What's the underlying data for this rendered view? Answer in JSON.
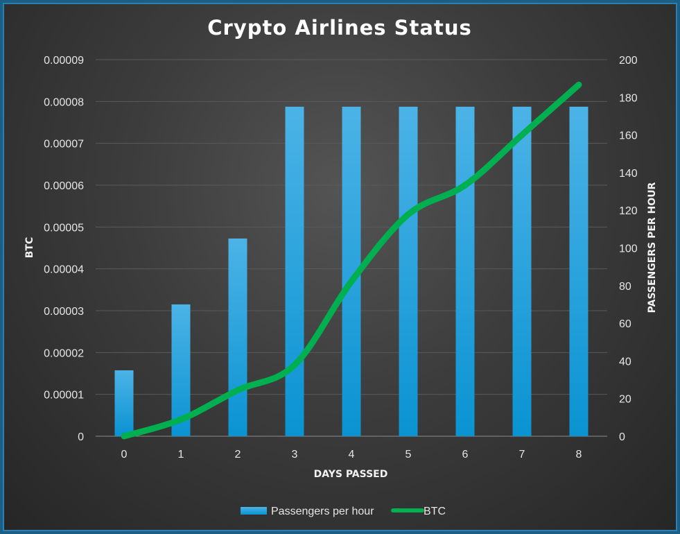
{
  "chart_data": {
    "type": "bar",
    "title": "Crypto Airlines Status",
    "xlabel": "DAYS PASSED",
    "ylabel": "BTC",
    "y2label": "PASSENGERS PER HOUR",
    "categories": [
      "0",
      "1",
      "2",
      "3",
      "4",
      "5",
      "6",
      "7",
      "8"
    ],
    "ylim": [
      0,
      9e-05
    ],
    "y2lim": [
      0,
      200
    ],
    "yticks": [
      "0",
      "0.00001",
      "0.00002",
      "0.00003",
      "0.00004",
      "0.00005",
      "0.00006",
      "0.00007",
      "0.00008",
      "0.00009"
    ],
    "y2ticks": [
      "0",
      "20",
      "40",
      "60",
      "80",
      "100",
      "120",
      "140",
      "160",
      "180",
      "200"
    ],
    "grid": true,
    "legend_position": "bottom",
    "series": [
      {
        "name": "Passengers per hour",
        "type": "bar",
        "axis": "secondary",
        "color": "#1aa3e0",
        "values": [
          35,
          70,
          105,
          175,
          175,
          175,
          175,
          175,
          175
        ]
      },
      {
        "name": "BTC",
        "type": "line",
        "axis": "primary",
        "color": "#00b050",
        "values": [
          0,
          4e-06,
          1.1e-05,
          1.7e-05,
          3.7e-05,
          5.3e-05,
          6e-05,
          7.2e-05,
          8.4e-05
        ]
      }
    ]
  }
}
